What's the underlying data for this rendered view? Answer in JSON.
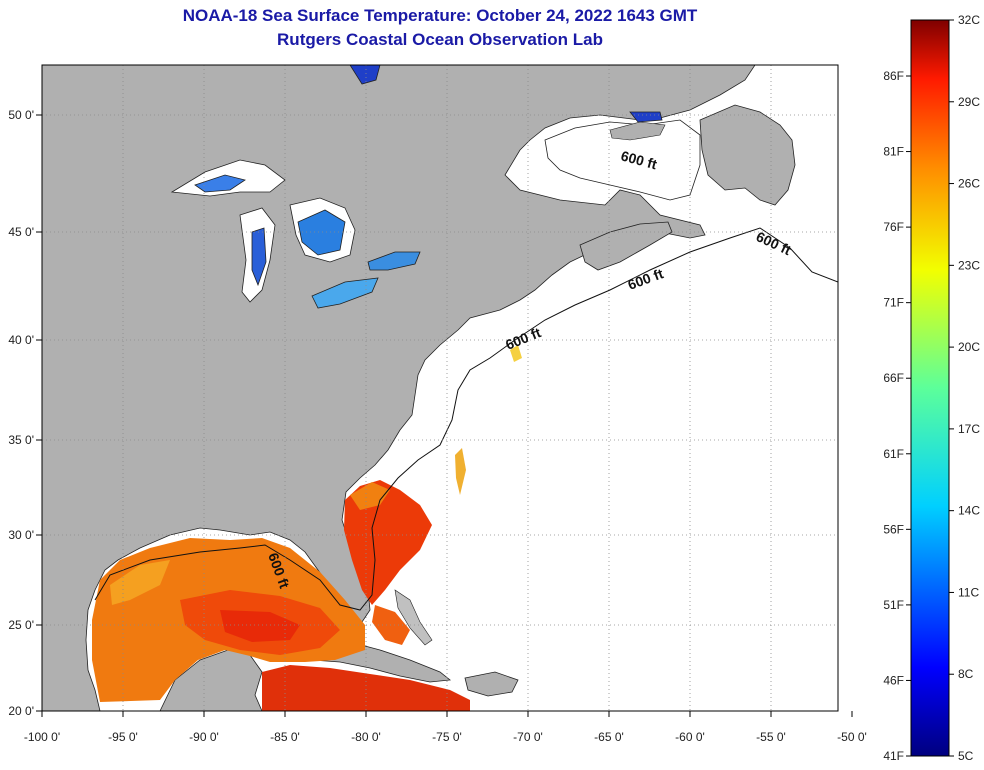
{
  "header": {
    "title": "NOAA-18 Sea Surface Temperature:  October 24, 2022 1643 GMT",
    "subtitle": "Rutgers Coastal Ocean Observation Lab"
  },
  "map": {
    "lon_range": [
      -100,
      -50
    ],
    "lat_range": [
      20,
      52
    ],
    "x_ticks": [
      "-100 0'",
      "-95 0'",
      "-90 0'",
      "-85 0'",
      "-80 0'",
      "-75 0'",
      "-70 0'",
      "-65 0'",
      "-60 0'",
      "-55 0'",
      "-50 0'"
    ],
    "y_ticks": [
      "50 0'",
      "45 0'",
      "40 0'",
      "35 0'",
      "30 0'",
      "25 0'",
      "20 0'"
    ],
    "contour_labels": [
      "600 ft",
      "600 ft",
      "600 ft",
      "600 ft",
      "600 ft"
    ],
    "colors": {
      "land": "#b0b0b0",
      "ocean_no_data": "#ffffff",
      "grid": "#9a9a9a"
    }
  },
  "colorbar": {
    "celsius": [
      "32C",
      "29C",
      "26C",
      "23C",
      "20C",
      "17C",
      "14C",
      "11C",
      "8C",
      "5C"
    ],
    "fahrenheit": [
      "86F",
      "81F",
      "76F",
      "71F",
      "66F",
      "61F",
      "56F",
      "51F",
      "46F",
      "41F"
    ],
    "range_c": [
      5,
      32
    ]
  }
}
